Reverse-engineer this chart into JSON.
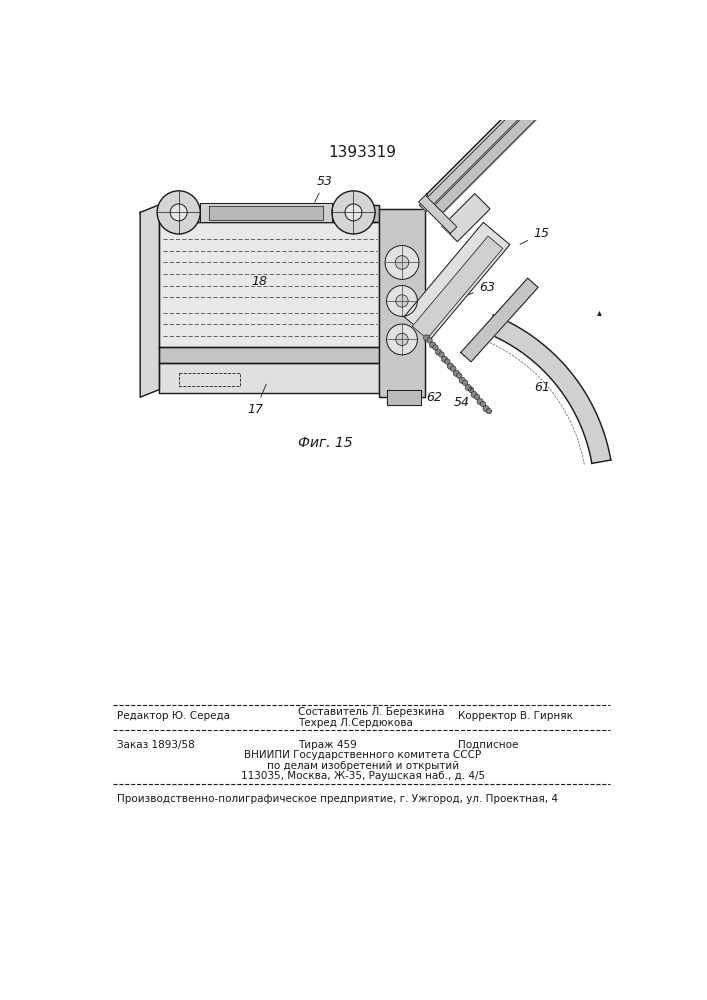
{
  "patent_number": "1393319",
  "fig_caption": "Фиг. 15",
  "background_color": "#ffffff",
  "line_color": "#1a1a1a",
  "footer": {
    "editor_line": "Редактор Ю. Середа",
    "composer_line1": "Составитель Л. Березкина",
    "composer_line2": "Техред Л.Сердюкова",
    "corrector_line": "Корректор В. Гирняк",
    "order_line": "Заказ 1893/58",
    "tirazh_line": "Тираж 459",
    "podpisnoe_line": "Подписное",
    "vniipи_line1": "ВНИИПИ Государственного комитета СССР",
    "vniipи_line2": "по делам изобретений и открытий",
    "vniipи_line3": "113035, Москва, Ж-35, Раушская наб., д. 4/5",
    "proizv_line": "Производственно-полиграфическое предприятие, г. Ужгород, ул. Проектная, 4"
  }
}
